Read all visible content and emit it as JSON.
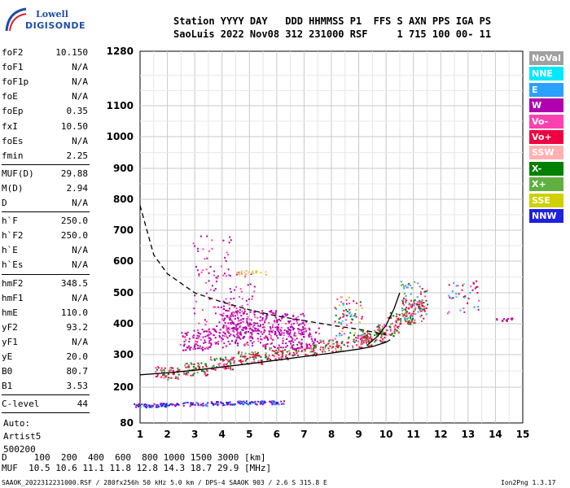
{
  "logo": {
    "line1": "Lowell",
    "line2": "DIGISONDE"
  },
  "header": {
    "row1": "Station YYYY DAY   DDD HHMMSS P1  FFS S AXN PPS IGA PS",
    "row2": "SaoLuis 2022 Nov08 312 231000 RSF     1 715 100 00- 11"
  },
  "params": {
    "group1": [
      {
        "label": "foF2",
        "value": "10.150"
      },
      {
        "label": "foF1",
        "value": "N/A"
      },
      {
        "label": "foF1p",
        "value": "N/A"
      },
      {
        "label": "foE",
        "value": "N/A"
      },
      {
        "label": "foEp",
        "value": "0.35"
      },
      {
        "label": "fxI",
        "value": "10.50"
      },
      {
        "label": "foEs",
        "value": "N/A"
      },
      {
        "label": "fmin",
        "value": "2.25"
      }
    ],
    "group2": [
      {
        "label": "MUF(D)",
        "value": "29.88"
      },
      {
        "label": "M(D)",
        "value": "2.94"
      },
      {
        "label": "D",
        "value": "N/A"
      }
    ],
    "group3": [
      {
        "label": "h`F",
        "value": "250.0"
      },
      {
        "label": "h`F2",
        "value": "250.0"
      },
      {
        "label": "h`E",
        "value": "N/A"
      },
      {
        "label": "h`Es",
        "value": "N/A"
      }
    ],
    "group4": [
      {
        "label": "hmF2",
        "value": "348.5"
      },
      {
        "label": "hmF1",
        "value": "N/A"
      },
      {
        "label": "hmE",
        "value": "110.0"
      },
      {
        "label": "yF2",
        "value": "93.2"
      },
      {
        "label": "yF1",
        "value": "N/A"
      },
      {
        "label": "yE",
        "value": "20.0"
      },
      {
        "label": "B0",
        "value": "80.7"
      },
      {
        "label": "B1",
        "value": "3.53"
      }
    ],
    "group5": [
      {
        "label": "C-level",
        "value": "44"
      }
    ],
    "auto": [
      "Auto:",
      "Artist5",
      "500200"
    ]
  },
  "legend": [
    {
      "label": "NoVal",
      "color": "#a0a0a0"
    },
    {
      "label": "NNE",
      "color": "#00e8ff"
    },
    {
      "label": "E",
      "color": "#2aa0ff"
    },
    {
      "label": "W",
      "color": "#b000b0"
    },
    {
      "label": "Vo-",
      "color": "#ff40b0"
    },
    {
      "label": "Vo+",
      "color": "#f00040"
    },
    {
      "label": "SSW",
      "color": "#ffb0b0"
    },
    {
      "label": "X-",
      "color": "#008000"
    },
    {
      "label": "X+",
      "color": "#60b040"
    },
    {
      "label": "SSE",
      "color": "#d0d000"
    },
    {
      "label": "NNW",
      "color": "#2020e0"
    }
  ],
  "muf_table": {
    "row1": "D     100  200  400  600  800 1000 1500 3000 [km]",
    "row2": "MUF  10.5 10.6 11.1 11.8 12.8 14.3 18.7 29.9 [MHz]"
  },
  "footer": "SAAOK_2022312231000.RSF / 280fx256h 50 kHz 5.0 km / DPS-4 SAAOK 903 / 2.6 S 315.8 E",
  "version": "Ion2Png 1.3.17",
  "chart_data": {
    "type": "scatter",
    "x_ticks": [
      "1",
      "2",
      "3",
      "4",
      "5",
      "6",
      "7",
      "8",
      "9",
      "10",
      "11",
      "12",
      "13",
      "14",
      "15"
    ],
    "y_ticks": [
      "80",
      "200",
      "300",
      "400",
      "500",
      "600",
      "700",
      "800",
      "900",
      "1000",
      "1100",
      "1280"
    ],
    "xlim": [
      1,
      15
    ],
    "y_scale": "piecewise-log",
    "ylim": [
      80,
      1280
    ],
    "grid": true,
    "series": [
      {
        "name": "O-trace (Vo+/Vo-)",
        "points": [
          [
            2.0,
            245
          ],
          [
            3.0,
            258
          ],
          [
            4.0,
            275
          ],
          [
            5.0,
            292
          ],
          [
            6.0,
            305
          ],
          [
            7.0,
            318
          ],
          [
            8.0,
            330
          ],
          [
            9.0,
            345
          ],
          [
            9.5,
            360
          ],
          [
            10.0,
            380
          ],
          [
            10.5,
            420
          ],
          [
            11.0,
            460
          ]
        ]
      },
      {
        "name": "W spread",
        "points": [
          [
            3.0,
            350
          ],
          [
            4.0,
            360
          ],
          [
            5.0,
            365
          ],
          [
            6.0,
            360
          ],
          [
            7.0,
            355
          ],
          [
            4.5,
            420
          ],
          [
            5.5,
            410
          ],
          [
            6.5,
            400
          ]
        ]
      },
      {
        "name": "Es/low layer (NNW)",
        "points": [
          [
            1.2,
            140
          ],
          [
            2.0,
            142
          ],
          [
            3.0,
            145
          ],
          [
            4.0,
            148
          ],
          [
            5.0,
            150
          ],
          [
            5.8,
            150
          ]
        ]
      },
      {
        "name": "Profile curve",
        "points": [
          [
            1.0,
            238
          ],
          [
            2.0,
            244
          ],
          [
            3.0,
            252
          ],
          [
            4.0,
            262
          ],
          [
            5.0,
            272
          ],
          [
            6.0,
            283
          ],
          [
            7.0,
            294
          ],
          [
            8.0,
            305
          ],
          [
            9.0,
            318
          ],
          [
            9.5,
            326
          ],
          [
            10.0,
            340
          ],
          [
            10.15,
            348
          ]
        ]
      }
    ],
    "dashed_curve": [
      [
        1.0,
        780
      ],
      [
        1.5,
        620
      ],
      [
        2.0,
        560
      ],
      [
        3.0,
        500
      ],
      [
        4.0,
        470
      ],
      [
        5.0,
        445
      ],
      [
        6.0,
        425
      ],
      [
        7.0,
        410
      ],
      [
        8.0,
        395
      ],
      [
        9.0,
        382
      ],
      [
        10.0,
        365
      ]
    ]
  }
}
